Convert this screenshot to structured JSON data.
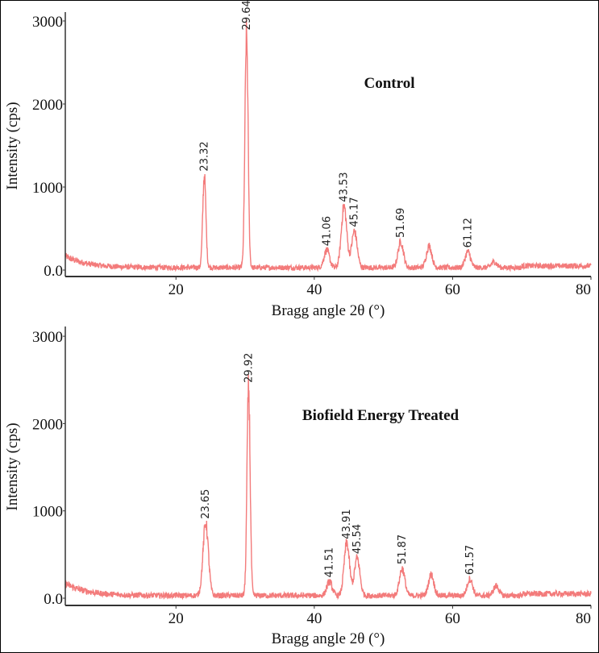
{
  "colors": {
    "trace": "#f37b7b",
    "axis": "#333333"
  },
  "chart_data": [
    {
      "type": "line",
      "title": "Control",
      "xlabel": "Bragg angle 2θ (°)",
      "ylabel": "Intensity (cps)",
      "xlim": [
        4,
        80
      ],
      "ylim": [
        -80,
        3150
      ],
      "xticks": [
        20,
        40,
        60,
        80
      ],
      "xtick_labels": [
        "20",
        "40",
        "60",
        "80"
      ],
      "yticks": [
        0,
        1000,
        2000,
        3000
      ],
      "ytick_labels": [
        "0.0",
        "1000",
        "2000",
        "3000"
      ],
      "grid": false,
      "peaks": [
        {
          "x": 24.1,
          "y": 1150,
          "label": "23.32"
        },
        {
          "x": 30.2,
          "y": 2850,
          "label": "29.64"
        },
        {
          "x": 41.8,
          "y": 250,
          "label": "41.06"
        },
        {
          "x": 44.3,
          "y": 780,
          "label": "43.53"
        },
        {
          "x": 45.8,
          "y": 480,
          "label": "45.17"
        },
        {
          "x": 52.5,
          "y": 350,
          "label": "51.69"
        },
        {
          "x": 56.6,
          "y": 300,
          "label": ""
        },
        {
          "x": 62.2,
          "y": 230,
          "label": "61.12"
        },
        {
          "x": 66.0,
          "y": 110,
          "label": ""
        }
      ]
    },
    {
      "type": "line",
      "title": "Biofield Energy Treated",
      "xlabel": "Bragg angle 2θ (°)",
      "ylabel": "Intensity (cps)",
      "xlim": [
        4,
        80
      ],
      "ylim": [
        -80,
        3150
      ],
      "xticks": [
        20,
        40,
        60,
        80
      ],
      "xtick_labels": [
        "20",
        "40",
        "60",
        "80"
      ],
      "yticks": [
        0,
        1000,
        2000,
        3000
      ],
      "ytick_labels": [
        "0.0",
        "1000",
        "2000",
        "3000"
      ],
      "grid": false,
      "peaks": [
        {
          "x": 24.3,
          "y": 870,
          "label": "23.65"
        },
        {
          "x": 30.5,
          "y": 2430,
          "label": "29.92"
        },
        {
          "x": 42.2,
          "y": 200,
          "label": "41.51"
        },
        {
          "x": 44.7,
          "y": 640,
          "label": "43.91"
        },
        {
          "x": 46.2,
          "y": 470,
          "label": "45.54"
        },
        {
          "x": 52.7,
          "y": 350,
          "label": "51.87"
        },
        {
          "x": 56.9,
          "y": 280,
          "label": ""
        },
        {
          "x": 62.5,
          "y": 230,
          "label": "61.57"
        },
        {
          "x": 66.3,
          "y": 150,
          "label": ""
        }
      ]
    }
  ]
}
